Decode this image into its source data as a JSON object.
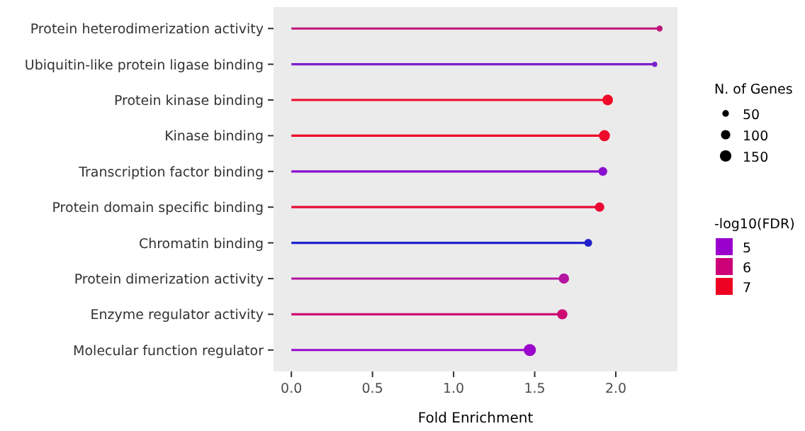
{
  "chart_data": {
    "type": "lollipop",
    "orientation": "horizontal",
    "xlabel": "Fold Enrichment",
    "legend_title": "N. of Genes",
    "clabel": "-log10(FDR)",
    "categories": [
      "Protein heterodimerization activity",
      "Ubiquitin-like protein ligase binding",
      "Protein kinase binding",
      "Kinase binding",
      "Transcription factor binding",
      "Protein domain specific binding",
      "Chromatin binding",
      "Protein dimerization activity",
      "Enzyme regulator activity",
      "Molecular function regulator"
    ],
    "values": [
      2.27,
      2.24,
      1.95,
      1.93,
      1.92,
      1.9,
      1.83,
      1.68,
      1.67,
      1.47
    ],
    "sizes": [
      40,
      30,
      130,
      140,
      90,
      100,
      70,
      120,
      120,
      170
    ],
    "size_legend": [
      50,
      100,
      150
    ],
    "colors": [
      "#c0147a",
      "#7a1fcc",
      "#ee0a2a",
      "#ee0a28",
      "#8a10d0",
      "#e80a34",
      "#2222cc",
      "#b414a0",
      "#cc0a72",
      "#9a08cc"
    ],
    "cticks": [
      5,
      6,
      7
    ],
    "xlim": [
      -0.11,
      2.38
    ],
    "xticks": [
      {
        "value": 0,
        "label": "0.0"
      },
      {
        "value": 0.5,
        "label": "0.5"
      },
      {
        "value": 1,
        "label": "1.0"
      },
      {
        "value": 1.5,
        "label": "1.5"
      },
      {
        "value": 2,
        "label": "2.0"
      }
    ],
    "grid": false
  }
}
